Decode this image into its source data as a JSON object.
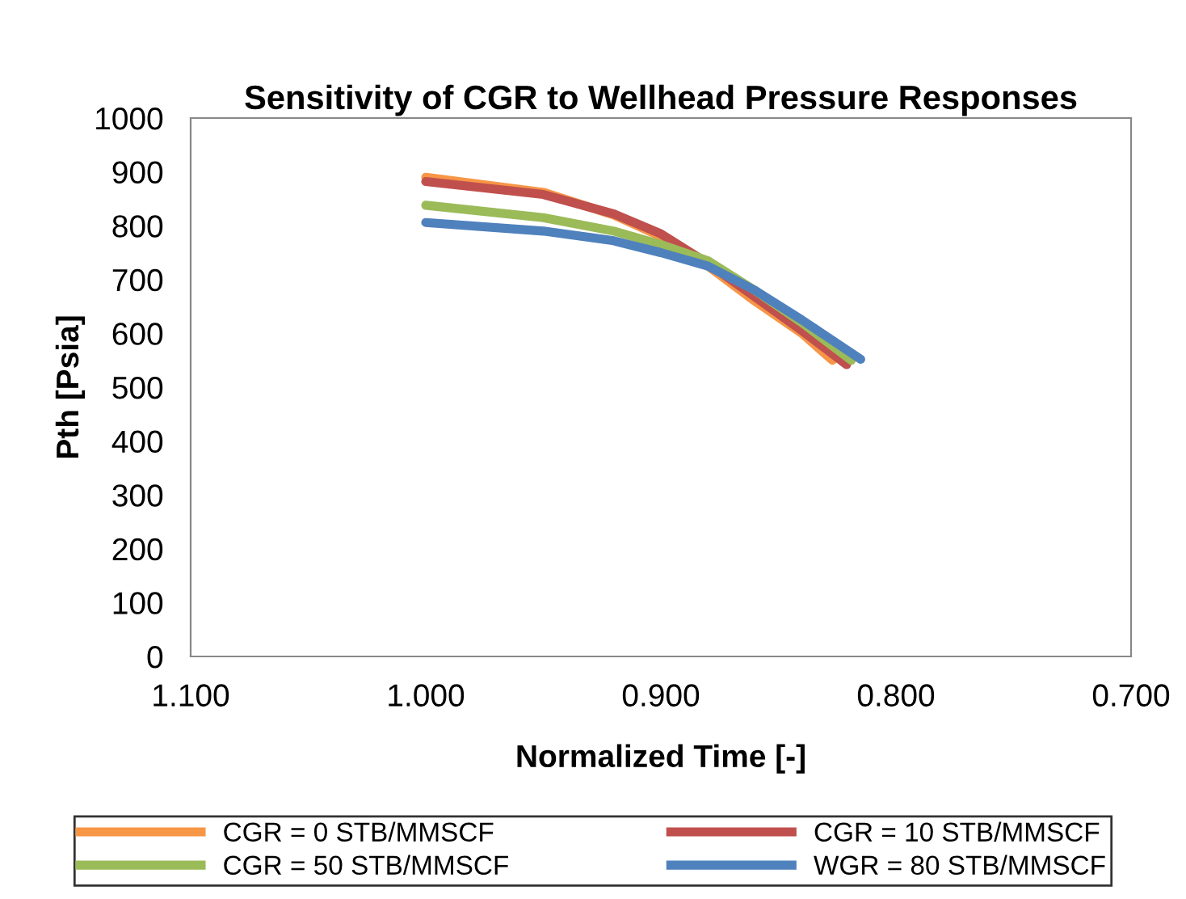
{
  "chart_data": {
    "type": "line",
    "title": "Sensitivity of CGR to Wellhead Pressure Responses",
    "xlabel": "Normalized Time [-]",
    "ylabel": "Pth [Psia]",
    "xlim": [
      1.1,
      0.7
    ],
    "xticks": [
      {
        "value": 1.1,
        "label": "1.100"
      },
      {
        "value": 1.0,
        "label": "1.000"
      },
      {
        "value": 0.9,
        "label": "0.900"
      },
      {
        "value": 0.8,
        "label": "0.800"
      },
      {
        "value": 0.7,
        "label": "0.700"
      }
    ],
    "ylim": [
      0,
      1000
    ],
    "yticks": [
      0,
      100,
      200,
      300,
      400,
      500,
      600,
      700,
      800,
      900,
      1000
    ],
    "grid": false,
    "legend": "bottom",
    "marker": "none",
    "line_style": "solid",
    "series": [
      {
        "name": "CGR = 0 STB/MMSCF",
        "color": "#f79646",
        "x": [
          1.0,
          0.95,
          0.92,
          0.9,
          0.88,
          0.86,
          0.84,
          0.827
        ],
        "values": [
          890,
          862,
          820,
          780,
          725,
          660,
          600,
          550
        ]
      },
      {
        "name": "CGR = 10 STB/MMSCF",
        "color": "#c0504d",
        "x": [
          1.0,
          0.95,
          0.92,
          0.9,
          0.88,
          0.86,
          0.84,
          0.821
        ],
        "values": [
          882,
          858,
          822,
          785,
          730,
          668,
          605,
          542
        ]
      },
      {
        "name": "CGR = 50 STB/MMSCF",
        "color": "#9bbb59",
        "x": [
          1.0,
          0.95,
          0.92,
          0.9,
          0.88,
          0.86,
          0.84,
          0.819
        ],
        "values": [
          838,
          815,
          790,
          765,
          735,
          680,
          620,
          550
        ]
      },
      {
        "name": "WGR = 80 STB/MMSCF",
        "color": "#4f81bd",
        "x": [
          1.0,
          0.95,
          0.92,
          0.9,
          0.88,
          0.86,
          0.84,
          0.815
        ],
        "values": [
          806,
          790,
          772,
          750,
          725,
          680,
          625,
          552
        ]
      }
    ]
  }
}
